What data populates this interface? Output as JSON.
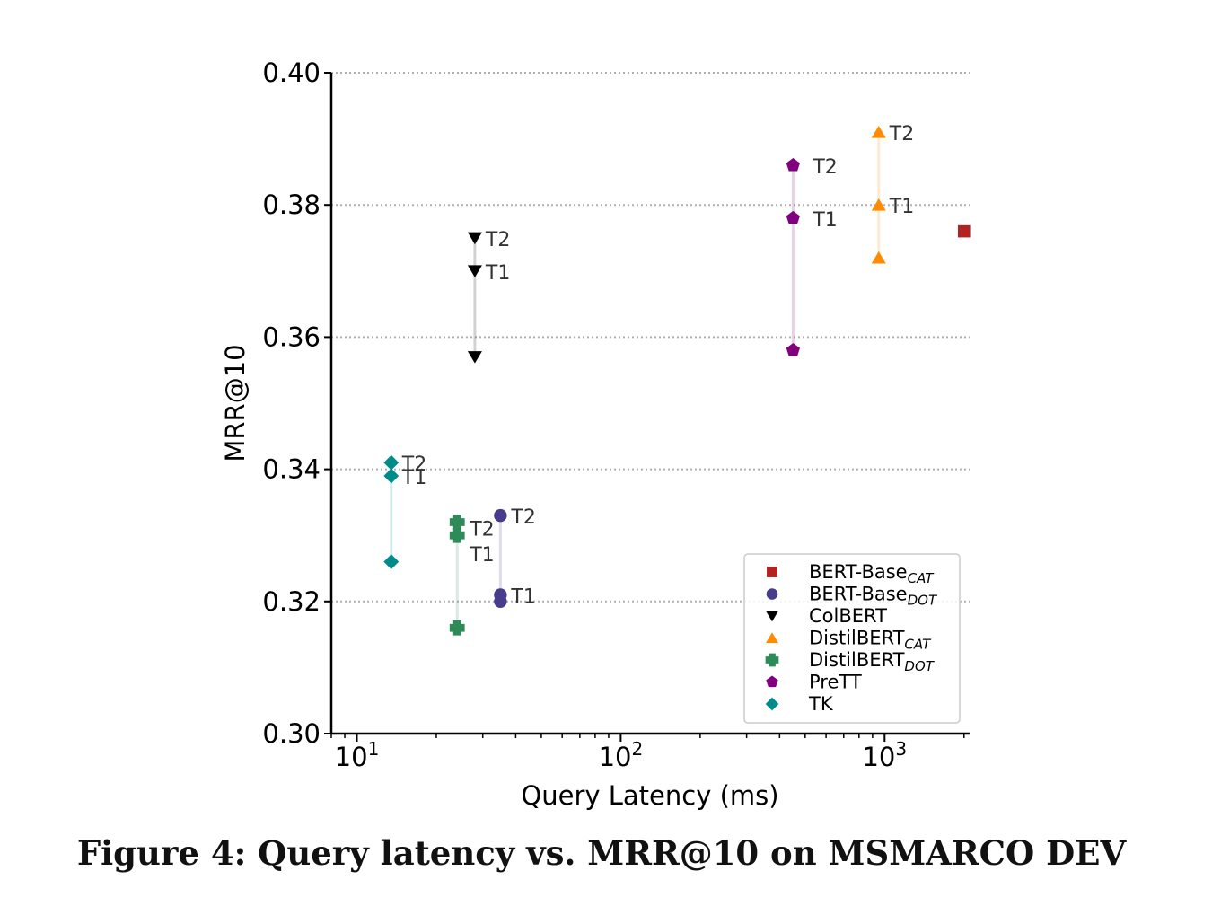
{
  "caption": "Figure 4: Query latency vs. MRR@10 on MSMARCO DEV",
  "chart_data": {
    "type": "scatter",
    "title": "",
    "xlabel": "Query Latency (ms)",
    "ylabel": "MRR@10",
    "x_scale": "log",
    "xlim": [
      8,
      2100
    ],
    "ylim": [
      0.3,
      0.4
    ],
    "x_ticks": [
      {
        "value": 10,
        "base": "10",
        "exp": "1"
      },
      {
        "value": 100,
        "base": "10",
        "exp": "2"
      },
      {
        "value": 1000,
        "base": "10",
        "exp": "3"
      }
    ],
    "y_ticks": [
      "0.30",
      "0.32",
      "0.34",
      "0.36",
      "0.38",
      "0.40"
    ],
    "grid": "y-dotted",
    "legend_position": "lower-right",
    "series": [
      {
        "name": "BERT-Base",
        "sub": "CAT",
        "color": "#b22222",
        "marker": "square",
        "points": [
          {
            "x": 2000,
            "y": 0.376,
            "label": ""
          }
        ]
      },
      {
        "name": "BERT-Base",
        "sub": "DOT",
        "color": "#483d8b",
        "marker": "circle",
        "points": [
          {
            "x": 35,
            "y": 0.32,
            "label": ""
          },
          {
            "x": 35,
            "y": 0.321,
            "label": "T1"
          },
          {
            "x": 35,
            "y": 0.333,
            "label": "T2"
          }
        ]
      },
      {
        "name": "ColBERT",
        "sub": "",
        "color": "#000000",
        "marker": "triangle-down",
        "points": [
          {
            "x": 28,
            "y": 0.357,
            "label": ""
          },
          {
            "x": 28,
            "y": 0.37,
            "label": "T1"
          },
          {
            "x": 28,
            "y": 0.375,
            "label": "T2"
          }
        ]
      },
      {
        "name": "DistilBERT",
        "sub": "CAT",
        "color": "#ff8c00",
        "marker": "triangle-up",
        "points": [
          {
            "x": 950,
            "y": 0.372,
            "label": ""
          },
          {
            "x": 950,
            "y": 0.38,
            "label": "T1"
          },
          {
            "x": 950,
            "y": 0.391,
            "label": "T2"
          }
        ]
      },
      {
        "name": "DistilBERT",
        "sub": "DOT",
        "color": "#2e8b57",
        "marker": "plus",
        "points": [
          {
            "x": 24,
            "y": 0.316,
            "label": ""
          },
          {
            "x": 24,
            "y": 0.33,
            "label": "T1"
          },
          {
            "x": 24,
            "y": 0.332,
            "label": "T2"
          }
        ]
      },
      {
        "name": "PreTT",
        "sub": "",
        "color": "#800080",
        "marker": "pentagon",
        "points": [
          {
            "x": 450,
            "y": 0.358,
            "label": ""
          },
          {
            "x": 450,
            "y": 0.378,
            "label": "T1"
          },
          {
            "x": 450,
            "y": 0.386,
            "label": "T2"
          }
        ]
      },
      {
        "name": "TK",
        "sub": "",
        "color": "#008b8b",
        "marker": "diamond",
        "points": [
          {
            "x": 13.5,
            "y": 0.326,
            "label": ""
          },
          {
            "x": 13.5,
            "y": 0.339,
            "label": "T1"
          },
          {
            "x": 13.5,
            "y": 0.341,
            "label": "T2"
          }
        ]
      }
    ]
  }
}
